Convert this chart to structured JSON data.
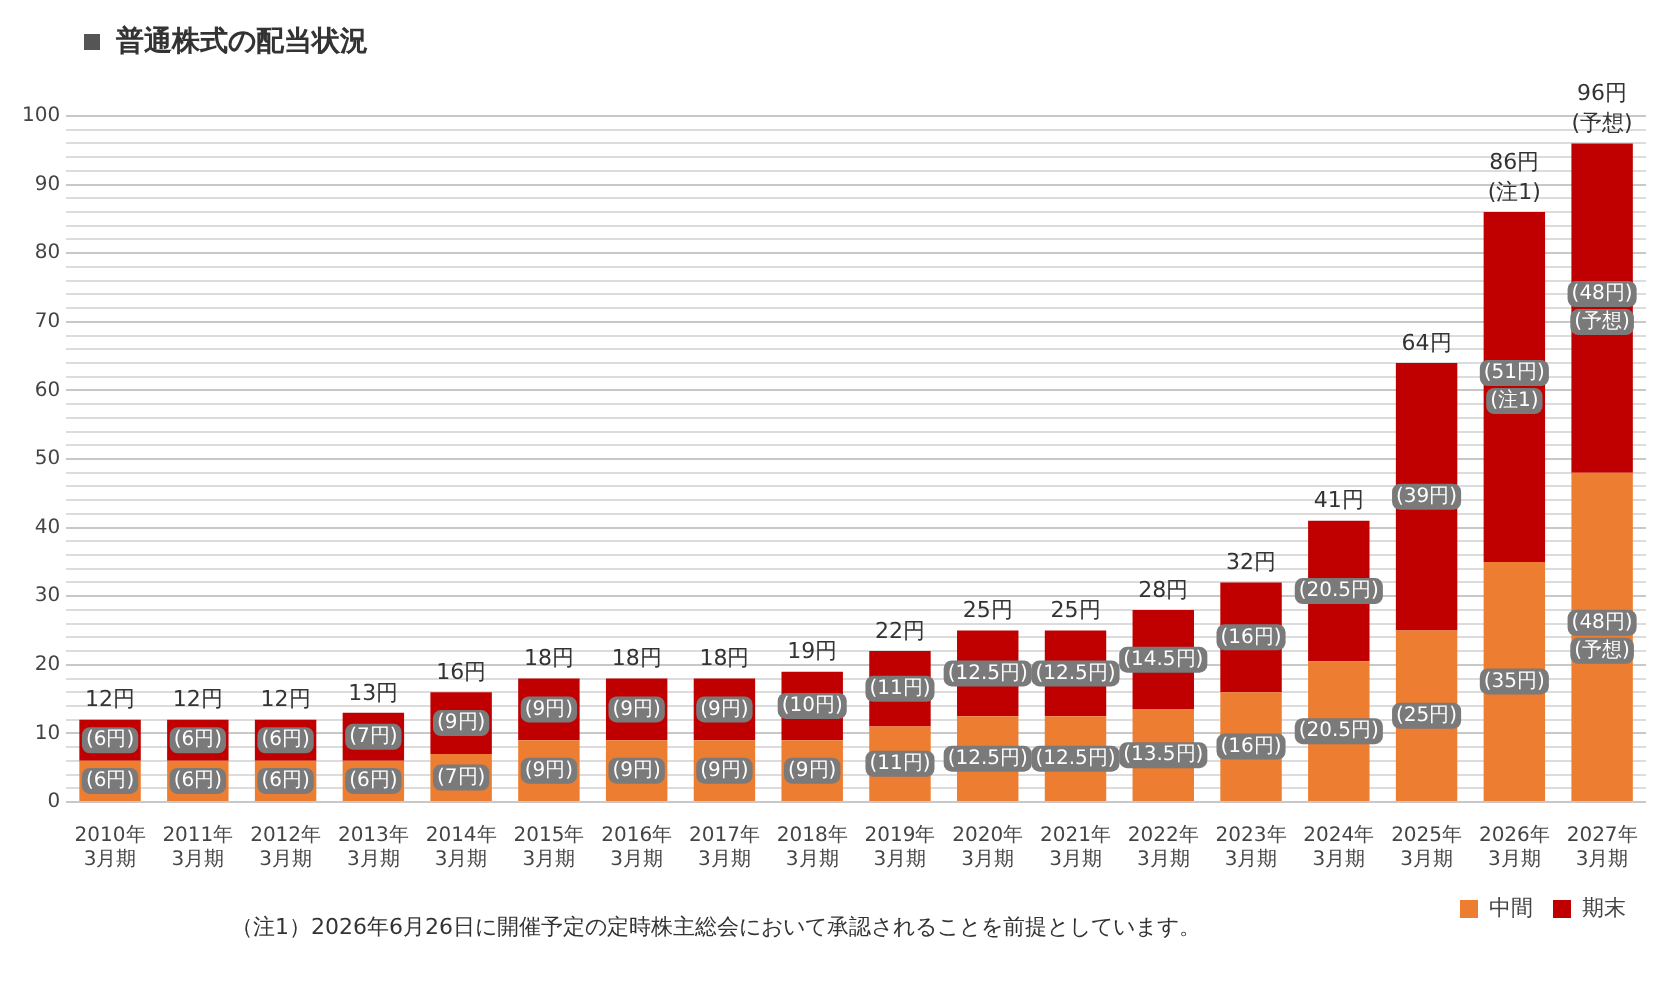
{
  "chart_data": {
    "type": "bar",
    "title": "普通株式の配当状況",
    "stacked": true,
    "legend": "bottom right",
    "grid": "y",
    "categories": [
      "2010年\n3月期",
      "2011年\n3月期",
      "2012年\n3月期",
      "2013年\n3月期",
      "2014年\n3月期",
      "2015年\n3月期",
      "2016年\n3月期",
      "2017年\n3月期",
      "2018年\n3月期",
      "2019年\n3月期",
      "2020年\n3月期",
      "2021年\n3月期",
      "2022年\n3月期",
      "2023年\n3月期",
      "2024年\n3月期",
      "2025年\n3月期",
      "2026年\n3月期",
      "2027年\n3月期"
    ],
    "series": [
      {
        "name": "中間",
        "color": "#ed7d31",
        "values": [
          6,
          6,
          6,
          6,
          7,
          9,
          9,
          9,
          9,
          11,
          12.5,
          12.5,
          13.5,
          16,
          20.5,
          25,
          35,
          48
        ],
        "value_labels": [
          "(6円)",
          "(6円)",
          "(6円)",
          "(6円)",
          "(7円)",
          "(9円)",
          "(9円)",
          "(9円)",
          "(9円)",
          "(11円)",
          "(12.5円)",
          "(12.5円)",
          "(13.5円)",
          "(16円)",
          "(20.5円)",
          "(25円)",
          "(35円)",
          "(48円)\n(予想)"
        ]
      },
      {
        "name": "期末",
        "color": "#c00000",
        "values": [
          6,
          6,
          6,
          7,
          9,
          9,
          9,
          9,
          10,
          11,
          12.5,
          12.5,
          14.5,
          16,
          20.5,
          39,
          51,
          48
        ],
        "value_labels": [
          "(6円)",
          "(6円)",
          "(6円)",
          "(7円)",
          "(9円)",
          "(9円)",
          "(9円)",
          "(9円)",
          "(10円)",
          "(11円)",
          "(12.5円)",
          "(12.5円)",
          "(14.5円)",
          "(16円)",
          "(20.5円)",
          "(39円)",
          "(51円)\n(注1)",
          "(48円)\n(予想)"
        ]
      }
    ],
    "totals": [
      "12円",
      "12円",
      "12円",
      "13円",
      "16円",
      "18円",
      "18円",
      "18円",
      "19円",
      "22円",
      "25円",
      "25円",
      "28円",
      "32円",
      "41円",
      "64円",
      "86円\n(注1)",
      "96円\n(予想)"
    ],
    "ylim": [
      0,
      100
    ],
    "yticks": [
      0,
      {
        "value": 2,
        "label": null
      },
      {
        "value": 4,
        "label": null
      },
      {
        "value": 6,
        "label": null
      },
      {
        "value": 8,
        "label": null
      },
      10,
      {
        "value": 12,
        "label": null
      },
      {
        "value": 14,
        "label": null
      },
      {
        "value": 16,
        "label": null
      },
      {
        "value": 18,
        "label": null
      },
      20,
      {
        "value": 22,
        "label": null
      },
      {
        "value": 24,
        "label": null
      },
      {
        "value": 26,
        "label": null
      },
      {
        "value": 28,
        "label": null
      },
      30,
      {
        "value": 32,
        "label": null
      },
      {
        "value": 34,
        "label": null
      },
      {
        "value": 36,
        "label": null
      },
      {
        "value": 38,
        "label": null
      },
      40,
      {
        "value": 42,
        "label": null
      },
      {
        "value": 44,
        "label": null
      },
      {
        "value": 46,
        "label": null
      },
      {
        "value": 48,
        "label": null
      },
      50,
      {
        "value": 52,
        "label": null
      },
      {
        "value": 54,
        "label": null
      },
      {
        "value": 56,
        "label": null
      },
      {
        "value": 58,
        "label": null
      },
      60,
      {
        "value": 62,
        "label": null
      },
      {
        "value": 64,
        "label": null
      },
      {
        "value": 66,
        "label": null
      },
      {
        "value": 68,
        "label": null
      },
      70,
      {
        "value": 72,
        "label": null
      },
      {
        "value": 74,
        "label": null
      },
      {
        "value": 76,
        "label": null
      },
      {
        "value": 78,
        "label": null
      },
      80,
      {
        "value": 82,
        "label": null
      },
      {
        "value": 84,
        "label": null
      },
      {
        "value": 86,
        "label": null
      },
      {
        "value": 88,
        "label": null
      },
      90,
      {
        "value": 92,
        "label": null
      },
      {
        "value": 94,
        "label": null
      },
      {
        "value": 96,
        "label": null
      },
      {
        "value": 98,
        "label": null
      },
      100
    ],
    "annotations": [
      "（注1）2026年6月26日に開催予定の定時株主総会において承認されることを前提としています。"
    ]
  }
}
